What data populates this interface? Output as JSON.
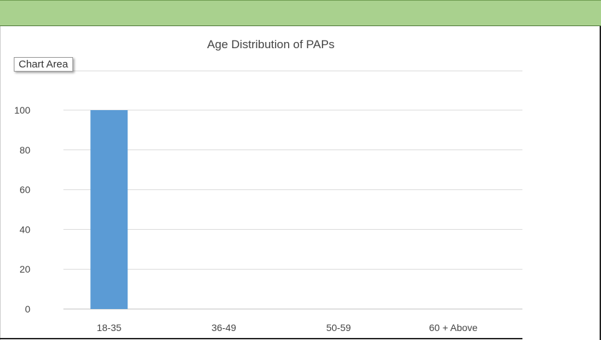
{
  "tooltip": {
    "label": "Chart Area"
  },
  "chart_data": {
    "type": "bar",
    "title": "Age Distribution of PAPs",
    "categories": [
      "18-35",
      "36-49",
      "50-59",
      "60 + Above"
    ],
    "series": [
      {
        "values": [
          100,
          0,
          0,
          0
        ]
      }
    ],
    "ylim": [
      0,
      100
    ],
    "yticks": [
      0,
      20,
      40,
      60,
      80,
      100
    ],
    "grid": true,
    "legend": "none",
    "colors": {
      "bar": "#5b9bd5"
    }
  }
}
